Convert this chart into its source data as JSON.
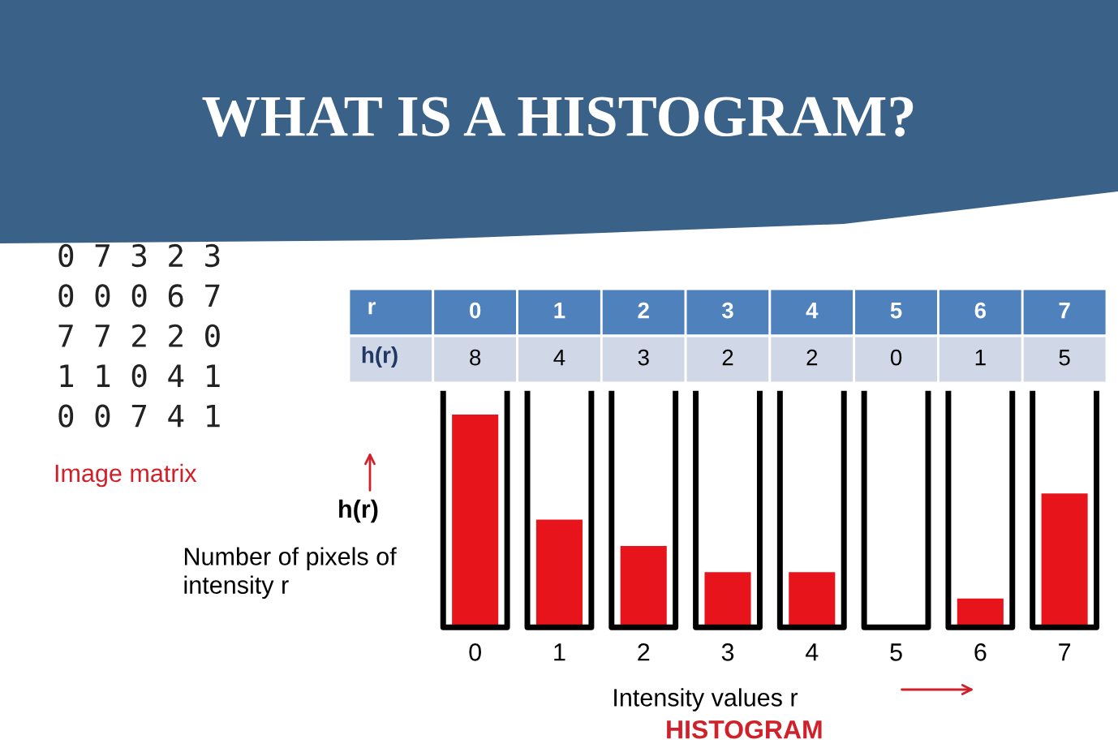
{
  "chart_data": {
    "type": "bar",
    "title": "WHAT IS A HISTOGRAM?",
    "categories": [
      "0",
      "1",
      "2",
      "3",
      "4",
      "5",
      "6",
      "7"
    ],
    "values": [
      8,
      4,
      3,
      2,
      2,
      0,
      1,
      5
    ],
    "color": "#e8141b",
    "data_labels": true,
    "xlabel": "Intensity values r",
    "ylabel": "Number of pixels of intensity r",
    "annotations": [
      "0 7 3 2 3\n0 0 0 6 7\n7 7 2 2 0\n1 1 0 4 1\n0 0 7 4 1",
      "Image matrix",
      "h(r)",
      "HISTOGRAM",
      "r",
      "h(r)"
    ]
  }
}
